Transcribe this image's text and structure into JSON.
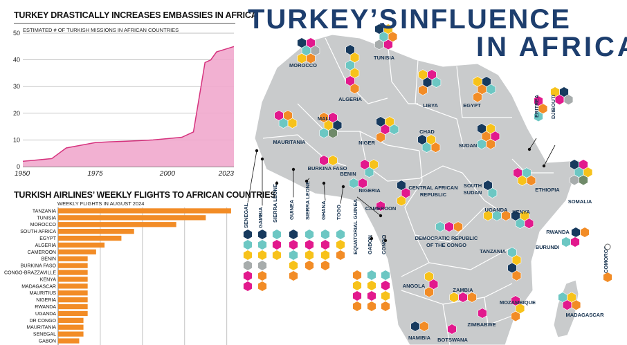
{
  "colors": {
    "navy": "#173a5e",
    "teal": "#6cc7c3",
    "yellow": "#f7c21a",
    "orange": "#f28c26",
    "pink": "#e2198d",
    "gray": "#a7acac",
    "green": "#6f8a69",
    "map_land": "#c9cbcc",
    "map_border": "#ffffff",
    "title_blue": "#1d3e6e",
    "line_fill": "#f1a9cd",
    "line_stroke": "#d6337e",
    "bar": "#f28c26"
  },
  "title": {
    "part1": "TURKEY’S",
    "part2": "INFLUENCE",
    "part3": "IN AFRICA"
  },
  "chart_data": [
    {
      "type": "area",
      "title": "TURKEY DRASTICALLY INCREASES EMBASSIES IN AFRICA",
      "subtitle": "ESTIMATED # OF TURKISH MISSIONS IN AFRICAN COUNTRIES",
      "x": [
        1950,
        1955,
        1960,
        1965,
        1970,
        1975,
        1980,
        1985,
        1990,
        1995,
        2000,
        2005,
        2009,
        2011,
        2013,
        2015,
        2017,
        2020,
        2023
      ],
      "y": [
        2,
        2.5,
        3,
        7,
        8,
        9,
        9.3,
        9.5,
        9.7,
        10,
        10.5,
        11,
        13,
        26,
        39,
        40,
        43,
        44,
        45
      ],
      "ylim": [
        0,
        50
      ],
      "yticks": [
        "0",
        "10",
        "20",
        "30",
        "40",
        "50"
      ],
      "xticks": [
        "1950",
        "1975",
        "2000",
        "2023"
      ],
      "grid": true
    },
    {
      "type": "bar",
      "title": "TURKISH AIRLINES’ WEEKLY FLIGHTS TO AFRICAN COUNTRIES",
      "subtitle": "WEEKLY FLIGHTS IN AUGUST 2024",
      "categories": [
        "TANZANIA",
        "TUNISIA",
        "MOROCCO",
        "SOUTH AFRICA",
        "EGYPT",
        "ALGERIA",
        "CAMEROON",
        "BENIN",
        "BURKINA FASO",
        "CONGO-BRAZZAVILLE",
        "KENYA",
        "MADAGASCAR",
        "MAURITIUS",
        "NIGERIA",
        "RWANDA",
        "UGANDA",
        "DR CONGO",
        "MAURITANIA",
        "SENEGAL",
        "GABON"
      ],
      "values": [
        41,
        35,
        28,
        18,
        15,
        11,
        9,
        7,
        7,
        7,
        7,
        7,
        7,
        7,
        7,
        7,
        6,
        6,
        6,
        5
      ],
      "xlim": [
        0,
        42
      ],
      "grid": true
    }
  ],
  "countries": [
    {
      "label": "MOROCCO",
      "hex": [
        "navy",
        "pink",
        "teal",
        "gray",
        "yellow",
        "orange"
      ]
    },
    {
      "label": "ALGERIA",
      "hex": [
        "navy",
        "yellow",
        "teal",
        "yellow",
        "pink",
        "orange"
      ]
    },
    {
      "label": "TUNISIA",
      "hex": [
        "navy",
        "yellow",
        "teal",
        "orange",
        "gray",
        "pink"
      ]
    },
    {
      "label": "LIBYA",
      "hex": [
        "yellow",
        "pink",
        "navy",
        "teal",
        "orange"
      ]
    },
    {
      "label": "EGYPT",
      "hex": [
        "yellow",
        "navy",
        "orange",
        "teal",
        "orange"
      ]
    },
    {
      "label": "ERITREA",
      "hex": [
        "pink",
        "orange",
        "teal"
      ]
    },
    {
      "label": "DJIBOUTI",
      "hex": [
        "yellow",
        "navy",
        "pink",
        "gray"
      ]
    },
    {
      "label": "MALI",
      "hex": [
        "orange",
        "pink",
        "yellow",
        "navy",
        "teal",
        "green"
      ]
    },
    {
      "label": "MAURITANIA",
      "hex": [
        "pink",
        "orange",
        "teal",
        "yellow"
      ]
    },
    {
      "label": "NIGER",
      "hex": [
        "navy",
        "yellow",
        "pink",
        "teal",
        "orange"
      ]
    },
    {
      "label": "CHAD",
      "hex": [
        "navy",
        "yellow",
        "teal",
        "orange"
      ]
    },
    {
      "label": "SUDAN",
      "hex": [
        "navy",
        "yellow",
        "orange",
        "pink",
        "teal",
        "orange"
      ]
    },
    {
      "label": "ETHIOPIA",
      "hex": [
        "pink",
        "teal",
        "yellow",
        "orange"
      ]
    },
    {
      "label": "SOMALIA",
      "hex": [
        "navy",
        "pink",
        "teal",
        "yellow",
        "gray",
        "green"
      ]
    },
    {
      "label": "BURKINA FASO",
      "hex": [
        "pink",
        "yellow"
      ]
    },
    {
      "label": "BENIN",
      "hex": [
        "pink",
        "yellow",
        "teal"
      ]
    },
    {
      "label": "NIGERIA",
      "hex": [
        "teal",
        "pink"
      ]
    },
    {
      "label": "CENTRAL AFRICAN REPUBLIC",
      "hex": [
        "navy",
        "pink",
        "yellow"
      ]
    },
    {
      "label": "SOUTH SUDAN",
      "hex": [
        "navy",
        "teal"
      ]
    },
    {
      "label": "CAMEROON",
      "hex": [
        "pink"
      ]
    },
    {
      "label": "UGANDA",
      "hex": [
        "yellow",
        "teal",
        "orange"
      ]
    },
    {
      "label": "KENYA",
      "hex": [
        "navy",
        "yellow",
        "teal",
        "pink"
      ]
    },
    {
      "label": "RWANDA",
      "hex": [
        "navy",
        "orange"
      ]
    },
    {
      "label": "BURUNDI",
      "hex": [
        "teal",
        "pink"
      ]
    },
    {
      "label": "DEMOCRATIC REPUBLIC OF THE CONGO",
      "hex": [
        "teal",
        "pink",
        "orange"
      ]
    },
    {
      "label": "TANZANIA",
      "hex": [
        "teal",
        "yellow",
        "navy",
        "orange"
      ]
    },
    {
      "label": "ANGOLA",
      "hex": [
        "yellow",
        "pink",
        "orange"
      ]
    },
    {
      "label": "ZAMBIA",
      "hex": [
        "yellow",
        "pink",
        "orange"
      ]
    },
    {
      "label": "MOZAMBIQUE",
      "hex": [
        "pink",
        "yellow",
        "orange"
      ]
    },
    {
      "label": "MADAGASCAR",
      "hex": [
        "teal",
        "yellow",
        "pink",
        "orange"
      ]
    },
    {
      "label": "COMOROS",
      "hex": [
        "orange"
      ]
    },
    {
      "label": "ZIMBABWE",
      "hex": [
        "pink"
      ]
    },
    {
      "label": "NAMIBIA",
      "hex": [
        "navy",
        "orange"
      ]
    },
    {
      "label": "BOTSWANA",
      "hex": [
        "pink"
      ]
    }
  ],
  "west_columns": [
    {
      "label": "SENEGAL",
      "hex": [
        "navy",
        "teal",
        "yellow",
        "gray",
        "pink",
        "pink"
      ]
    },
    {
      "label": "GAMBIA",
      "hex": [
        "navy",
        "teal",
        "yellow",
        "gray",
        "orange",
        "orange"
      ]
    },
    {
      "label": "SIERRA LEONE",
      "hex": [
        "teal",
        "pink",
        "yellow"
      ]
    },
    {
      "label": "GUINEA",
      "hex": [
        "navy",
        "pink",
        "teal",
        "yellow",
        "orange"
      ]
    },
    {
      "label": "SIERRA LEONE",
      "hex": [
        "teal",
        "pink",
        "yellow",
        "orange"
      ]
    },
    {
      "label": "GHANA",
      "hex": [
        "teal",
        "pink",
        "yellow",
        "orange"
      ]
    },
    {
      "label": "TOGO",
      "hex": [
        "teal",
        "yellow",
        "orange"
      ]
    },
    {
      "label": "EQUATORIAL GUINEA",
      "hex": [
        "orange",
        "yellow",
        "pink",
        "orange"
      ]
    },
    {
      "label": "GABON",
      "hex": [
        "teal",
        "yellow",
        "pink",
        "orange"
      ]
    },
    {
      "label": "CONGO",
      "hex": [
        "teal",
        "pink",
        "yellow",
        "orange"
      ]
    }
  ]
}
